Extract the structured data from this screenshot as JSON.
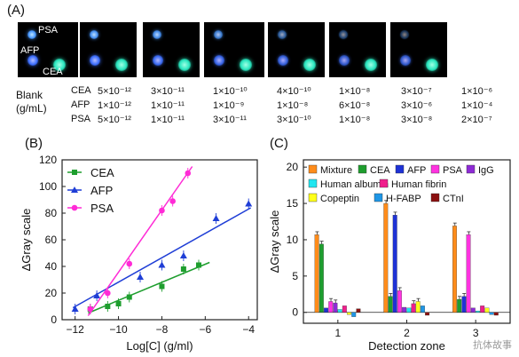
{
  "panel_a": {
    "label": "(A)",
    "spot_labels": [
      "PSA",
      "AFP",
      "CEA"
    ],
    "blank_label": [
      "Blank",
      "(g/mL)"
    ],
    "row_labels": [
      "CEA",
      "AFP",
      "PSA"
    ],
    "concentrations": [
      [
        "5×10⁻¹²",
        "1×10⁻¹²",
        "5×10⁻¹²"
      ],
      [
        "3×10⁻¹¹",
        "1×10⁻¹¹",
        "1×10⁻¹¹"
      ],
      [
        "1×10⁻¹⁰",
        "1×10⁻⁹",
        "3×10⁻¹¹"
      ],
      [
        "4×10⁻¹⁰",
        "1×10⁻⁸",
        "3×10⁻¹⁰"
      ],
      [
        "1×10⁻⁸",
        "6×10⁻⁸",
        "1×10⁻⁸"
      ],
      [
        "3×10⁻⁷",
        "3×10⁻⁶",
        "3×10⁻⁸"
      ],
      [
        "1×10⁻⁶",
        "1×10⁻⁴",
        "2×10⁻⁷"
      ]
    ],
    "psa_brightness": [
      1.0,
      0.95,
      0.9,
      0.8,
      0.6,
      0.45,
      0.35
    ],
    "afp_brightness": [
      1.0,
      1.0,
      0.95,
      0.9,
      0.85,
      0.8,
      0.8
    ],
    "cea_brightness": [
      1.0,
      1.0,
      1.0,
      1.0,
      1.0,
      1.0,
      1.0
    ]
  },
  "chart_data": [
    {
      "type": "scatter",
      "panel": "(B)",
      "xlabel": "Log[C] (g/ml)",
      "ylabel": "ΔGray scale",
      "xlim": [
        -12.6,
        -3.6
      ],
      "ylim": [
        0,
        120
      ],
      "xticks": [
        -12,
        -10,
        -8,
        -6,
        -4
      ],
      "yticks": [
        0,
        20,
        40,
        60,
        80,
        100,
        120
      ],
      "legend": "top-left",
      "series": [
        {
          "name": "CEA",
          "color": "#1e9e2e",
          "marker": "square",
          "x": [
            -11.3,
            -10.5,
            -10.0,
            -9.5,
            -8.0,
            -7.0,
            -6.3
          ],
          "y": [
            8,
            10,
            12,
            17,
            25,
            38,
            41
          ],
          "fit": [
            [
              -11.4,
              5
            ],
            [
              -5.8,
              43
            ]
          ]
        },
        {
          "name": "AFP",
          "color": "#1f3ed6",
          "marker": "triangle",
          "x": [
            -12.0,
            -11.0,
            -9.0,
            -8.0,
            -7.0,
            -5.5,
            -4.0
          ],
          "y": [
            8,
            18,
            32,
            41,
            48,
            76,
            87
          ],
          "fit": [
            [
              -12.1,
              9
            ],
            [
              -3.9,
              84
            ]
          ]
        },
        {
          "name": "PSA",
          "color": "#ff2bd6",
          "marker": "circle",
          "x": [
            -11.3,
            -10.5,
            -9.5,
            -8.0,
            -7.5,
            -6.8
          ],
          "y": [
            8,
            20,
            42,
            82,
            89,
            110
          ],
          "fit": [
            [
              -11.4,
              3
            ],
            [
              -6.6,
              115
            ]
          ]
        }
      ]
    },
    {
      "type": "bar",
      "panel": "(C)",
      "xlabel": "Detection zone",
      "ylabel": "ΔGray scale",
      "categories": [
        "1",
        "2",
        "3"
      ],
      "ylim": [
        -1.5,
        21
      ],
      "yticks": [
        0,
        5,
        10,
        15,
        20
      ],
      "legend": "top",
      "series": [
        {
          "name": "Mixture",
          "color": "#ff8c1a",
          "values": [
            10.7,
            15.0,
            11.9
          ]
        },
        {
          "name": "CEA",
          "color": "#1e9e2e",
          "values": [
            9.4,
            2.2,
            1.8
          ]
        },
        {
          "name": "AFP",
          "color": "#1e32d6",
          "values": [
            0.6,
            13.4,
            2.2
          ]
        },
        {
          "name": "PSA",
          "color": "#ff33e0",
          "values": [
            1.5,
            3.0,
            10.7
          ]
        },
        {
          "name": "IgG",
          "color": "#8e2bd6",
          "values": [
            1.3,
            0.7,
            0.6
          ]
        },
        {
          "name": "Human albumin",
          "color": "#22e6f0",
          "values": [
            0.4,
            0.6,
            0.2
          ]
        },
        {
          "name": "Human fibrin",
          "color": "#f01e8c",
          "values": [
            0.9,
            1.2,
            0.9
          ]
        },
        {
          "name": "Copeptin",
          "color": "#ffff1a",
          "values": [
            -0.3,
            1.5,
            0.6
          ]
        },
        {
          "name": "H-FABP",
          "color": "#1e96e6",
          "values": [
            -0.6,
            0.9,
            -0.3
          ]
        },
        {
          "name": "CTnI",
          "color": "#8b1010",
          "values": [
            0.5,
            -0.4,
            -0.4
          ]
        }
      ]
    }
  ],
  "watermark": "抗体故事"
}
